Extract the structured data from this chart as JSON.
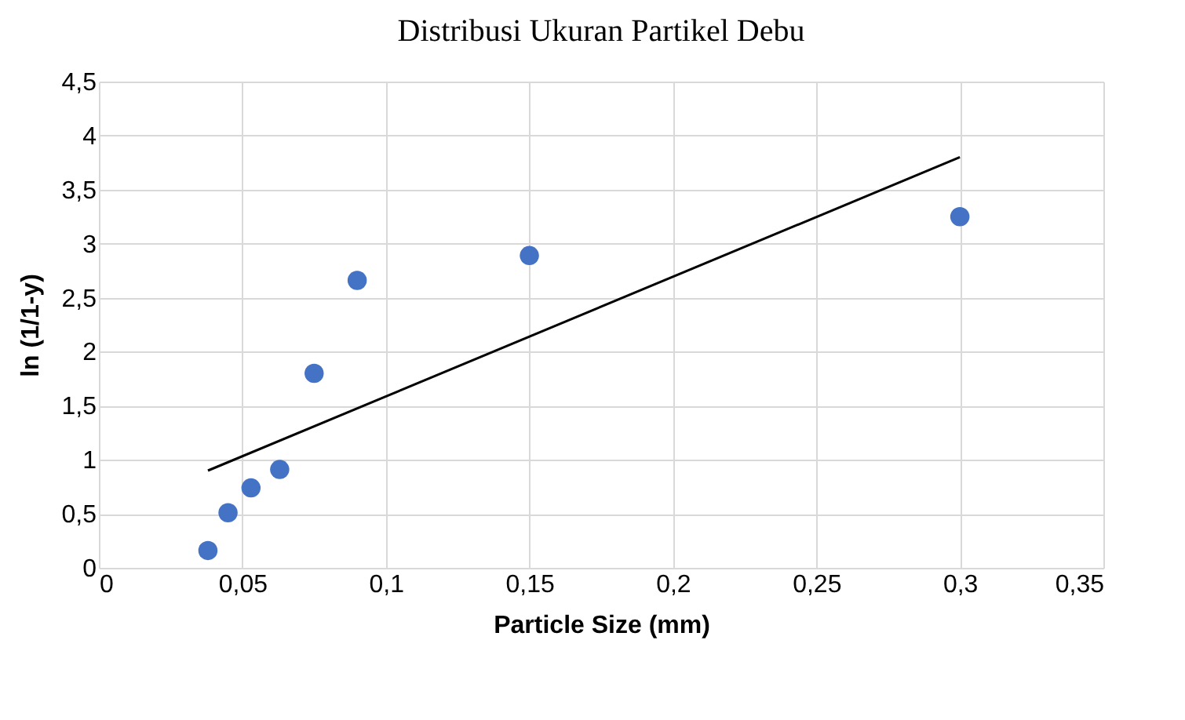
{
  "chart_data": {
    "type": "scatter",
    "title": "Distribusi Ukuran Partikel Debu",
    "xlabel": "Particle Size (mm)",
    "ylabel": "ln (1/1-y)",
    "xlim": [
      0,
      0.35
    ],
    "ylim": [
      0,
      4.5
    ],
    "xticks": [
      0,
      {
        "value": 0.05,
        "label": "0,05"
      },
      {
        "value": 0.1,
        "label": "0,1"
      },
      {
        "value": 0.15,
        "label": "0,15"
      },
      {
        "value": 0.2,
        "label": "0,2"
      },
      {
        "value": 0.25,
        "label": "0,25"
      },
      {
        "value": 0.3,
        "label": "0,3"
      },
      {
        "value": 0.35,
        "label": "0,35"
      }
    ],
    "yticks": [
      0,
      {
        "value": 0.5,
        "label": "0,5"
      },
      1,
      {
        "value": 1.5,
        "label": "1,5"
      },
      2,
      {
        "value": 2.5,
        "label": "2,5"
      },
      3,
      {
        "value": 3.5,
        "label": "3,5"
      },
      4,
      {
        "value": 4.5,
        "label": "4,5"
      }
    ],
    "grid": true,
    "series": [
      {
        "marker": "circle",
        "color": "#4472c4",
        "x": [
          0.038,
          0.045,
          0.053,
          0.063,
          0.075,
          0.09,
          0.15,
          0.3
        ],
        "values": [
          0.16,
          0.51,
          0.74,
          0.91,
          1.8,
          2.66,
          2.89,
          3.25
        ]
      },
      {
        "type": "line",
        "marker": "none",
        "line_style": "solid",
        "color": "#000000",
        "x": [
          0.038,
          0.3
        ],
        "values": [
          0.9,
          3.8
        ]
      }
    ]
  }
}
